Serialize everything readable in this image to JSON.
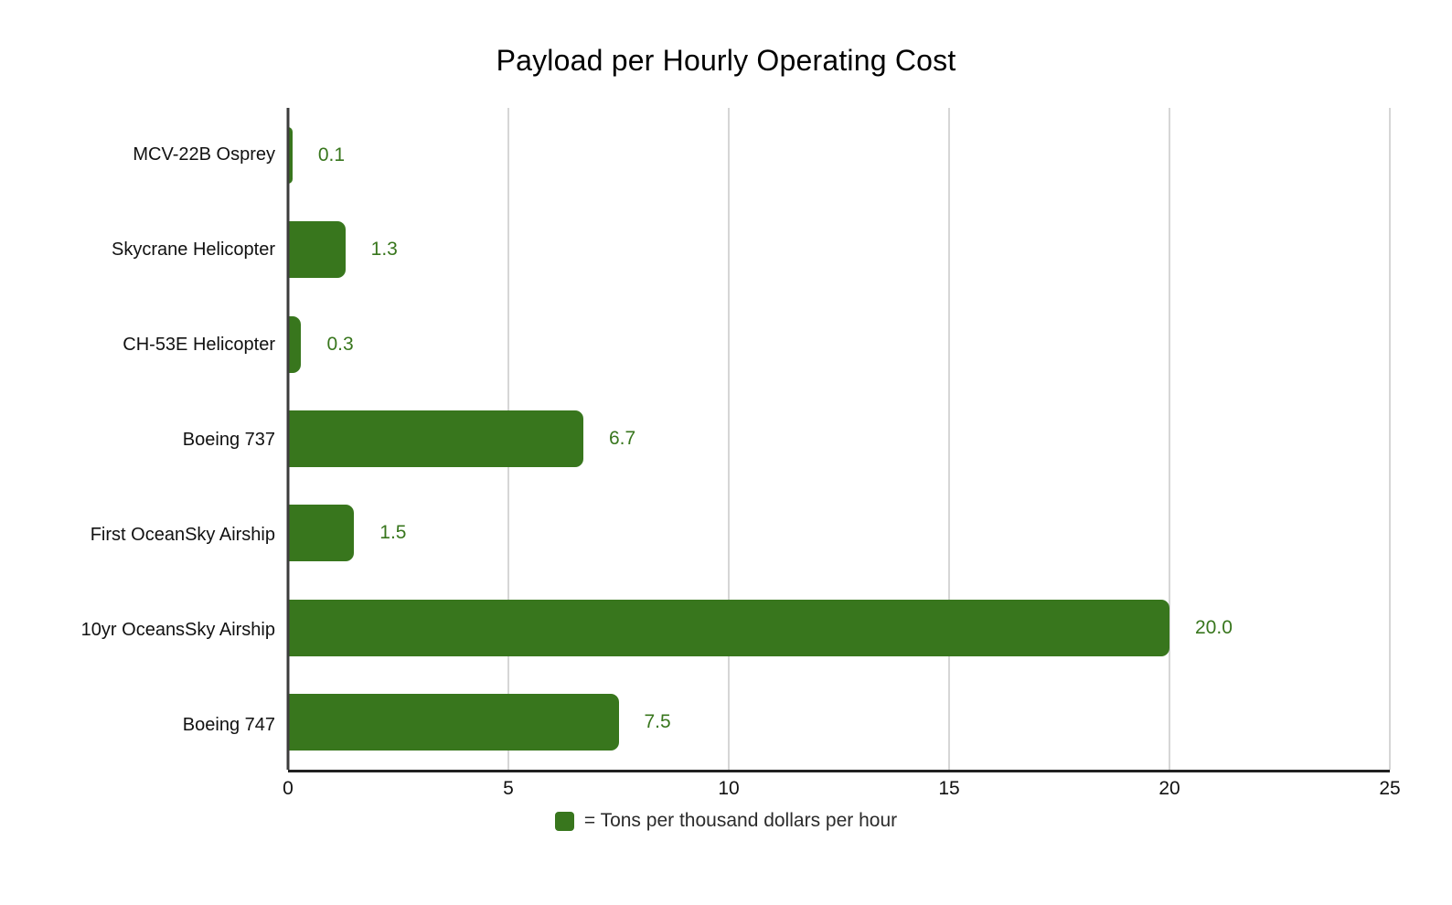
{
  "title": "Payload per Hourly Operating Cost",
  "chart_data": {
    "type": "bar",
    "orientation": "horizontal",
    "title": "Payload per Hourly Operating Cost",
    "categories": [
      "MCV-22B Osprey",
      "Skycrane Helicopter",
      "CH-53E Helicopter",
      "Boeing 737",
      "First OceanSky Airship",
      "10yr OceansSky Airship",
      "Boeing 747"
    ],
    "values": [
      0.1,
      1.3,
      0.3,
      6.7,
      1.5,
      20.0,
      7.5
    ],
    "value_labels": [
      "0.1",
      "1.3",
      "0.3",
      "6.7",
      "1.5",
      "20.0",
      "7.5"
    ],
    "xlabel": "",
    "ylabel": "",
    "xlim": [
      0,
      25
    ],
    "xticks": [
      0,
      5,
      10,
      15,
      20,
      25
    ],
    "grid": "vertical-gridlines-on",
    "legend": {
      "label": "= Tons per thousand dollars per hour",
      "position": "bottom"
    },
    "colors": {
      "bar": "#38761d",
      "value_label": "#38761d",
      "gridline": "#d6d6d6",
      "axis_line": "#3c3c3c",
      "baseline": "#212121",
      "text": "#111111"
    }
  }
}
